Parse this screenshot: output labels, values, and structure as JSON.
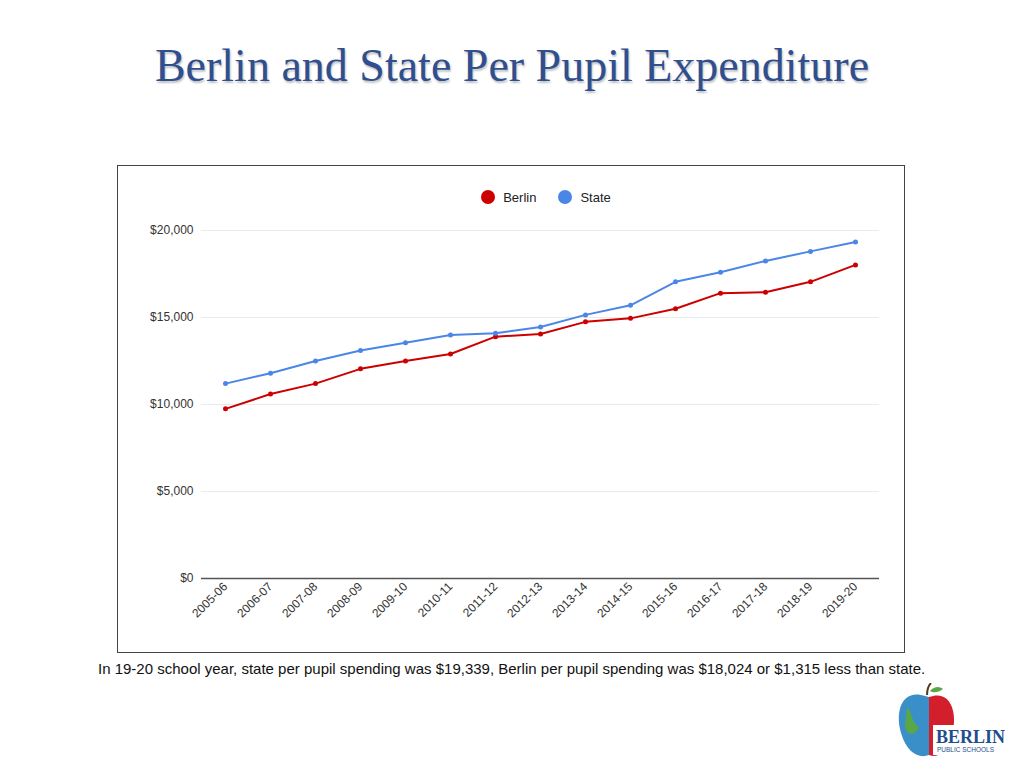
{
  "chart_data": {
    "type": "line",
    "title": "Berlin and State Per Pupil Expenditure",
    "caption": "In 19-20 school year, state per pupil spending was $19,339, Berlin per pupil spending was $18,024 or $1,315 less than state.",
    "categories": [
      "2005-06",
      "2006-07",
      "2007-08",
      "2008-09",
      "2009-10",
      "2010-11",
      "2011-12",
      "2012-13",
      "2013-14",
      "2014-15",
      "2015-16",
      "2016-17",
      "2017-18",
      "2018-19",
      "2019-20"
    ],
    "series": [
      {
        "name": "Berlin",
        "color": "#cc0000",
        "marker": "circle",
        "values": [
          9750,
          10600,
          11200,
          12050,
          12500,
          12900,
          13900,
          14050,
          14750,
          14950,
          15500,
          16400,
          16450,
          17050,
          18024
        ]
      },
      {
        "name": "State",
        "color": "#4a86e8",
        "marker": "circle",
        "values": [
          11200,
          11800,
          12500,
          13100,
          13550,
          14000,
          14100,
          14450,
          15150,
          15700,
          17050,
          17600,
          18250,
          18800,
          19339
        ]
      }
    ],
    "ylim": [
      0,
      20000
    ],
    "yticks": [
      {
        "value": 0,
        "label": "$0"
      },
      {
        "value": 5000,
        "label": "$5,000"
      },
      {
        "value": 10000,
        "label": "$10,000"
      },
      {
        "value": 15000,
        "label": "$15,000"
      },
      {
        "value": 20000,
        "label": "$20,000"
      }
    ],
    "grid": true,
    "legend": "top"
  },
  "logo": {
    "title": "BERLIN",
    "subtitle": "PUBLIC SCHOOLS"
  }
}
